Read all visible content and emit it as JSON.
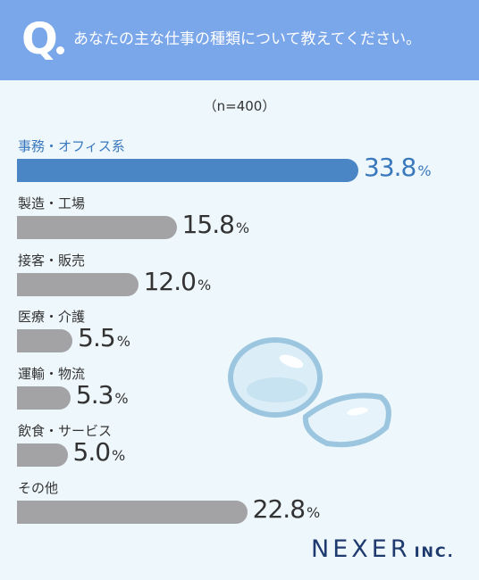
{
  "header": {
    "q_mark": "Q",
    "question": "あなたの主な仕事の種類について教えてください。"
  },
  "sample_size": "（n=400）",
  "colors": {
    "header_bg": "#7aa6ea",
    "highlight_bar": "#4a86c6",
    "default_bar": "#a3a3a5",
    "highlight_text": "#3a78bd",
    "default_text": "#333333"
  },
  "chart_data": {
    "type": "bar",
    "orientation": "horizontal",
    "unit": "%",
    "xlim": [
      0,
      35
    ],
    "categories": [
      "事務・オフィス系",
      "製造・工場",
      "接客・販売",
      "医療・介護",
      "運輸・物流",
      "飲食・サービス",
      "その他"
    ],
    "values": [
      33.8,
      15.8,
      12.0,
      5.5,
      5.3,
      5.0,
      22.8
    ],
    "value_labels": [
      "33.8",
      "15.8",
      "12.0",
      "5.5",
      "5.3",
      "5.0",
      "22.8"
    ],
    "highlight_index": 0
  },
  "brand": {
    "name": "NEXER",
    "suffix": "INC."
  }
}
